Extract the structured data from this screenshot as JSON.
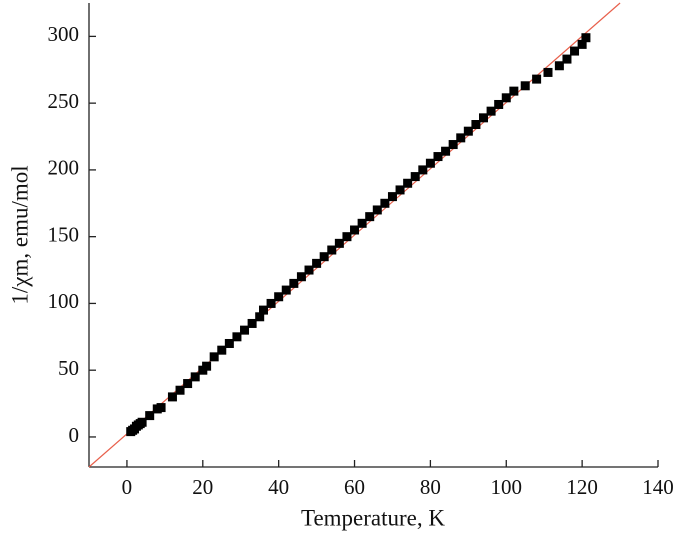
{
  "chart_data": {
    "type": "scatter",
    "xlabel": "Temperature, K",
    "ylabel": "1/χm, emu/mol",
    "xlim": [
      -10,
      140
    ],
    "ylim": [
      -22.5,
      325
    ],
    "xticks": [
      0,
      20,
      40,
      60,
      80,
      100,
      120,
      140
    ],
    "yticks": [
      0,
      50,
      100,
      150,
      200,
      250,
      300
    ],
    "series": [
      {
        "color": "#000000",
        "x": [
          1,
          1.5,
          2,
          2.5,
          3,
          3.5,
          4,
          6,
          8,
          9,
          12,
          14,
          16,
          18,
          20,
          21,
          23,
          25,
          27,
          29,
          31,
          33,
          35,
          36,
          38,
          40,
          42,
          44,
          46,
          48,
          50,
          52,
          54,
          56,
          58,
          60,
          62,
          64,
          66,
          68,
          70,
          72,
          74,
          76,
          78,
          80,
          82,
          84,
          86,
          88,
          90,
          92,
          94,
          96,
          98,
          100,
          102,
          105,
          108,
          111,
          114,
          116,
          118,
          120,
          121
        ],
        "values": [
          4,
          5,
          6,
          8,
          9,
          10,
          11,
          16,
          21,
          22,
          30,
          35,
          40,
          45,
          50,
          53,
          60,
          65,
          70,
          75,
          80,
          85,
          90,
          95,
          100,
          105,
          110,
          115,
          120,
          125,
          130,
          135,
          140,
          145,
          150,
          155,
          160,
          165,
          170,
          175,
          180,
          185,
          190,
          195,
          200,
          205,
          210,
          214,
          219,
          224,
          229,
          234,
          239,
          244,
          249,
          254,
          259,
          263,
          268,
          273,
          278,
          283,
          289,
          294,
          299
        ]
      }
    ],
    "fit_line": {
      "color": "#e8604c",
      "x": [
        -10,
        130
      ],
      "values": [
        -22.5,
        325
      ]
    }
  }
}
